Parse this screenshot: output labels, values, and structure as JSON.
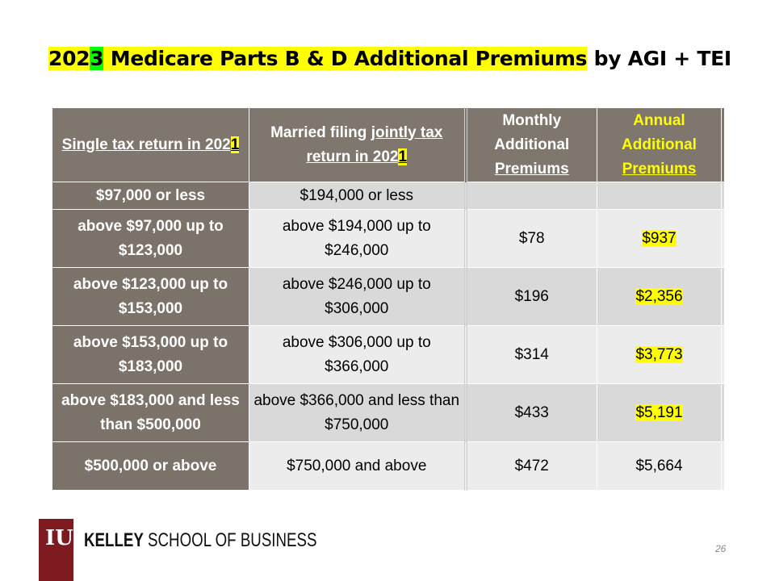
{
  "title": {
    "year_prefix": "202",
    "year_last": "3",
    "highlighted": " Medicare Parts B & D Additional Premiums",
    "rest": " by AGI + TEI"
  },
  "table": {
    "headers": [
      {
        "text": "Single tax return in 202",
        "hl": "1"
      },
      {
        "pre": "Married filing ",
        "u": "jointly tax return in 202",
        "hl": "1"
      },
      {
        "text": "Monthly Additional ",
        "u": "Premiums"
      },
      {
        "text": "Annual Additional ",
        "u": "Premiums"
      }
    ],
    "rows": [
      {
        "single": "$97,000 or less",
        "joint": "$194,000 or less",
        "monthly": "",
        "annual": ""
      },
      {
        "single": "above $97,000 up to $123,000",
        "joint": "above $194,000 up to $246,000",
        "monthly": "$78",
        "annual": "$937"
      },
      {
        "single": "above $123,000 up to $153,000",
        "joint": "above $246,000 up to $306,000",
        "monthly": "$196",
        "annual": "$2,356"
      },
      {
        "single": "above $153,000 up to $183,000",
        "joint": "above $306,000 up to $366,000",
        "monthly": "$314",
        "annual": "$3,773"
      },
      {
        "single": "above $183,000 and less than $500,000",
        "joint": "above $366,000 and less than $750,000",
        "monthly": "$433",
        "annual": "$5,191"
      },
      {
        "single": "$500,000 or above",
        "joint": "$750,000 and above",
        "monthly": "$472",
        "annual": "$5,664"
      }
    ]
  },
  "footer": {
    "logo": "IU",
    "brand_bold": "KELLEY",
    "brand_rest": " SCHOOL OF BUSINESS",
    "page": "26"
  },
  "colors": {
    "header_bg": "#7f766d",
    "highlight": "#ffff00",
    "highlight_green": "#00ff00",
    "iu_crimson": "#7d1a1f"
  }
}
